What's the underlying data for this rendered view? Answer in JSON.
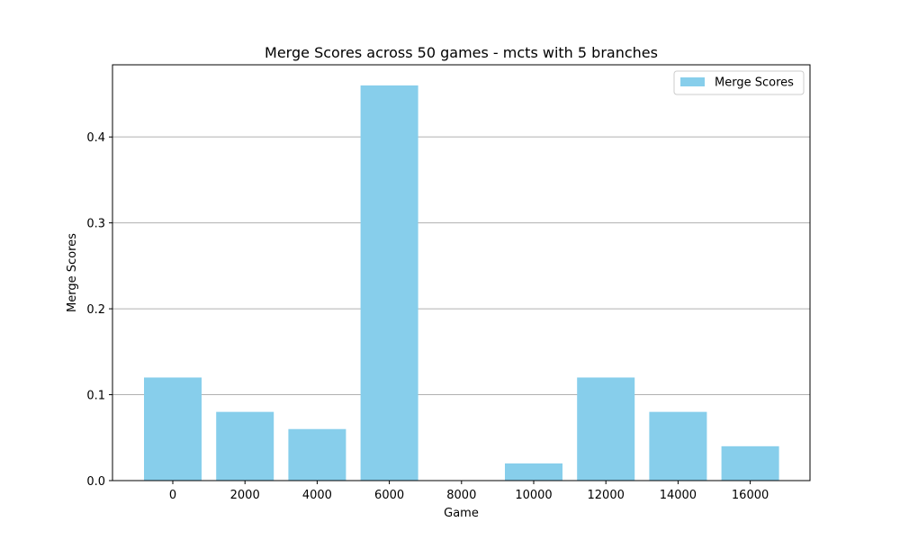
{
  "chart_data": {
    "type": "bar",
    "title": "Merge Scores across 50 games - mcts with 5 branches",
    "xlabel": "Game",
    "ylabel": "Merge Scores",
    "categories": [
      "0",
      "2000",
      "4000",
      "6000",
      "8000",
      "10000",
      "12000",
      "14000",
      "16000"
    ],
    "series": [
      {
        "name": "Merge Scores",
        "values": [
          0.12,
          0.08,
          0.06,
          0.46,
          0.0,
          0.02,
          0.12,
          0.08,
          0.04
        ],
        "color": "#87ceeb"
      }
    ],
    "ylim": [
      0,
      0.484
    ],
    "yticks": [
      0.0,
      0.1,
      0.2,
      0.3,
      0.4
    ],
    "ytick_labels": [
      "0.0",
      "0.1",
      "0.2",
      "0.3",
      "0.4"
    ],
    "grid": "y",
    "legend_position": "upper right"
  }
}
